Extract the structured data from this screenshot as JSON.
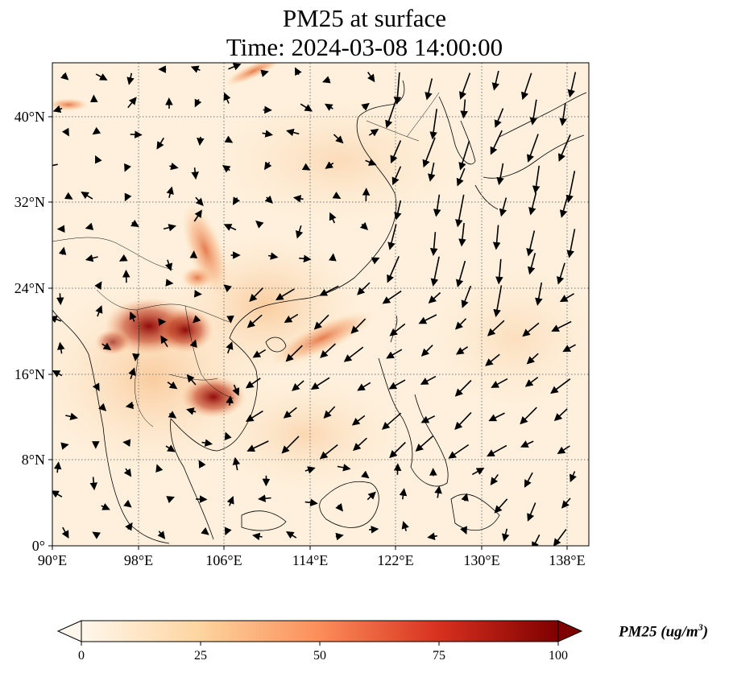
{
  "title_line1": "PM25 at surface",
  "title_line2": "Time: 2024-03-08 14:00:00",
  "x_ticks": [
    "90°E",
    "98°E",
    "106°E",
    "114°E",
    "122°E",
    "130°E",
    "138°E"
  ],
  "y_ticks": [
    "0°",
    "8°N",
    "16°N",
    "24°N",
    "32°N",
    "40°N"
  ],
  "colorbar": {
    "label_main": "PM25 (ug/m",
    "label_sup": "3",
    "label_end": ")",
    "ticks": [
      "0",
      "25",
      "50",
      "75",
      "100"
    ],
    "min": 0,
    "max": 100,
    "colormap": "OrRd",
    "extend": "both"
  },
  "chart_data": {
    "type": "map",
    "variable": "PM25",
    "units": "ug/m3",
    "lon_range": [
      90,
      140
    ],
    "lat_range": [
      0,
      45
    ],
    "gridlines": true,
    "high_pm25_regions": [
      {
        "lon": 100,
        "lat": 20,
        "level": 95
      },
      {
        "lon": 103,
        "lat": 21,
        "level": 85
      },
      {
        "lon": 105,
        "lat": 13,
        "level": 90
      },
      {
        "lon": 104,
        "lat": 24,
        "level": 55
      },
      {
        "lon": 106,
        "lat": 28,
        "level": 45
      },
      {
        "lon": 114,
        "lat": 18,
        "level": 55
      }
    ]
  }
}
